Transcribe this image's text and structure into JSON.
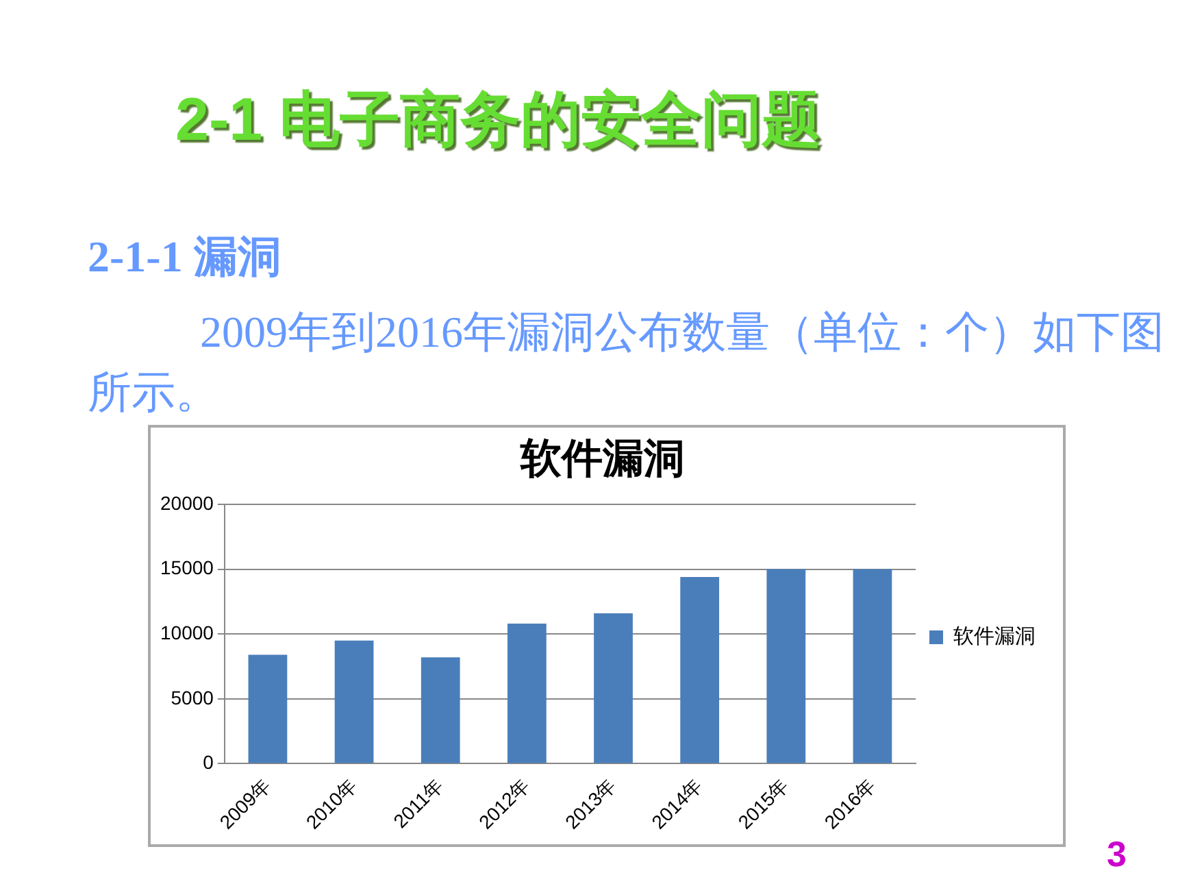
{
  "chart_data": {
    "type": "bar",
    "title": "软件漏洞",
    "annotations": [
      "2-1 电子商务的安全问题",
      "2-1-1 漏洞",
      "2009年到2016年漏洞公布数量（单位：个）如下图所示。",
      "3"
    ],
    "categories": [
      "2009年",
      "2010年",
      "2011年",
      "2012年",
      "2013年",
      "2014年",
      "2015年",
      "2016年"
    ],
    "series": [
      {
        "name": "软件漏洞",
        "color": "#4a7ebb",
        "values": [
          8400,
          9500,
          8200,
          10800,
          11600,
          14400,
          15000,
          15000
        ]
      }
    ],
    "ylim": [
      0,
      20000
    ],
    "yticks": [
      0,
      5000,
      10000,
      15000,
      20000
    ],
    "grid": "y",
    "legend": "right"
  }
}
